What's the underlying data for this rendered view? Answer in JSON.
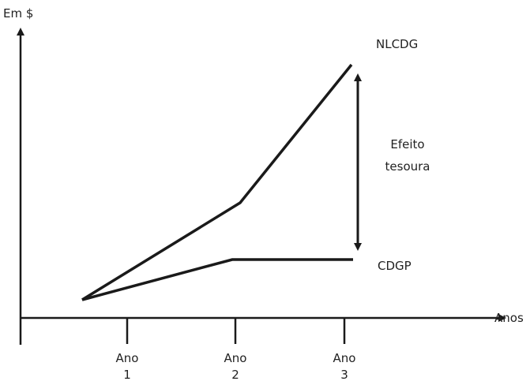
{
  "diagram": {
    "y_axis_label": "Em $",
    "x_axis_label": "Anos",
    "x_ticks": [
      {
        "line1": "Ano",
        "line2": "1"
      },
      {
        "line1": "Ano",
        "line2": "2"
      },
      {
        "line1": "Ano",
        "line2": "3"
      }
    ],
    "line_labels": {
      "upper": "NLCDG",
      "lower": "CDGP"
    },
    "gap_label": {
      "line1": "Efeito",
      "line2": "tesoura"
    },
    "colors": {
      "stroke": "#1a1a1a",
      "text": "#222222"
    }
  }
}
